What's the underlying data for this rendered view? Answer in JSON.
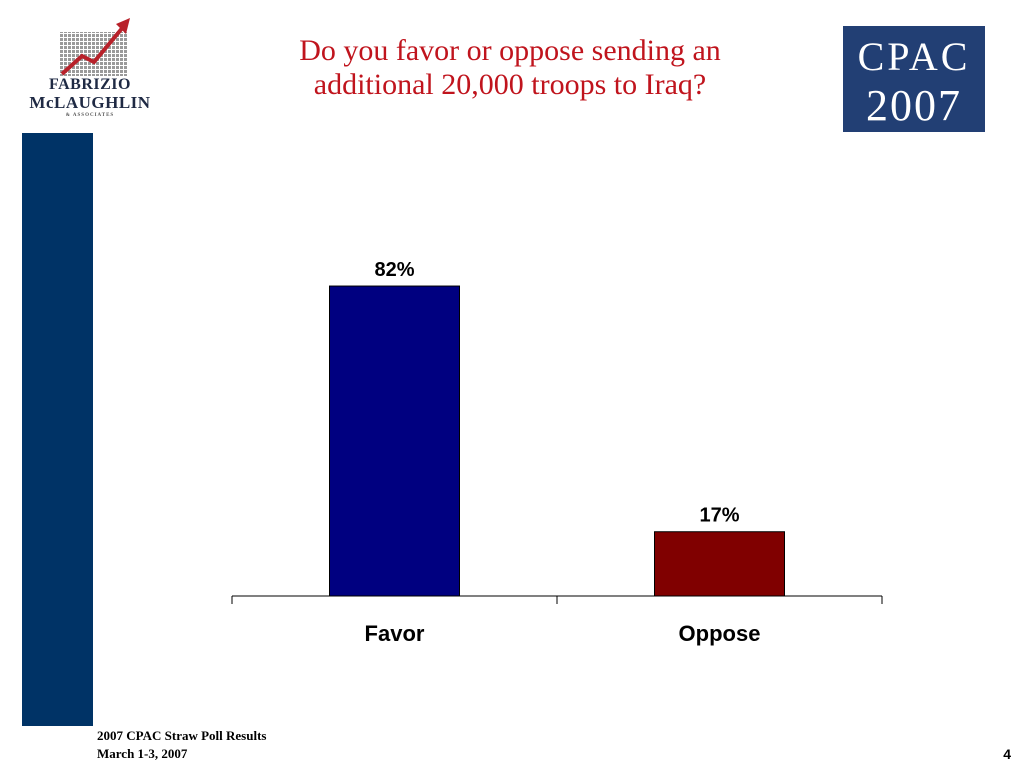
{
  "slide": {
    "title_line1": "Do you favor or oppose sending an",
    "title_line2": "additional 20,000 troops to Iraq?",
    "title_color": "#c0141d",
    "footer_line1": "2007 CPAC Straw Poll Results",
    "footer_line2": "March 1-3, 2007",
    "page_number": "4",
    "side_bar_color": "#003366"
  },
  "left_logo": {
    "line1": "FABRIZIO",
    "line2": "McLAUGHLIN",
    "line3": "& ASSOCIATES",
    "icon": "rising-arrow-grid-icon",
    "arrow_color": "#b8212a"
  },
  "right_logo": {
    "line1": "CPAC",
    "line2": "2007",
    "background_color": "#223f74",
    "icon": "flag-zero-icon"
  },
  "chart_data": {
    "type": "bar",
    "categories": [
      "Favor",
      "Oppose"
    ],
    "values": [
      82,
      17
    ],
    "value_labels": [
      "82%",
      "17%"
    ],
    "colors": [
      "#000080",
      "#800000"
    ],
    "ylim": [
      0,
      100
    ],
    "grid": false,
    "legend": "none"
  }
}
